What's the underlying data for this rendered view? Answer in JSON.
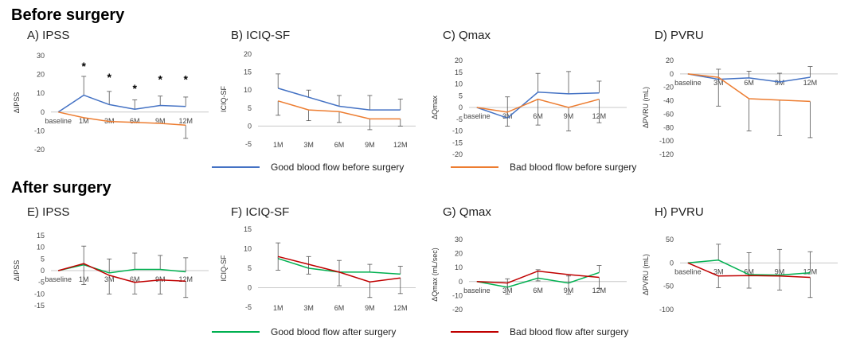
{
  "sections": {
    "before": "Before surgery",
    "after": "After surgery"
  },
  "legends": {
    "before": [
      {
        "label": "Good blood flow before surgery",
        "color": "#4472c4"
      },
      {
        "label": "Bad blood flow before surgery",
        "color": "#ed7d31"
      }
    ],
    "after": [
      {
        "label": "Good blood flow after surgery",
        "color": "#00b050"
      },
      {
        "label": "Bad blood flow after surgery",
        "color": "#c00000"
      }
    ]
  },
  "chart_data": [
    {
      "id": "A",
      "panel_title": "A) IPSS",
      "type": "line",
      "ylabel": "ΔIPSS",
      "ylim": [
        -20,
        30
      ],
      "yticks": [
        -20,
        -10,
        0,
        10,
        20,
        30
      ],
      "categories": [
        "baseline",
        "1M",
        "3M",
        "6M",
        "9M",
        "12M"
      ],
      "cat_offset": 0.1,
      "baseline_at_zero": true,
      "series": [
        {
          "color": "#4472c4",
          "values": [
            0,
            9,
            4,
            1.5,
            3.5,
            3
          ],
          "err": [
            0,
            10,
            7,
            5,
            5,
            5
          ]
        },
        {
          "color": "#ed7d31",
          "values": [
            0,
            -3,
            -5,
            -5.5,
            -6,
            -7
          ],
          "err": [
            0,
            0,
            0,
            0,
            0,
            7
          ]
        }
      ],
      "markers": [
        {
          "x": 1,
          "y": 25,
          "text": "*"
        },
        {
          "x": 2,
          "y": 19,
          "text": "*"
        },
        {
          "x": 3,
          "y": 13,
          "text": "*"
        },
        {
          "x": 4,
          "y": 18,
          "text": "*"
        },
        {
          "x": 5,
          "y": 18,
          "text": "*"
        }
      ]
    },
    {
      "id": "B",
      "panel_title": "B) ICIQ-SF",
      "type": "line",
      "ylabel": "ICIQ-SF",
      "ylim": [
        -5,
        20
      ],
      "yticks": [
        -5,
        0,
        5,
        10,
        15,
        20
      ],
      "categories": [
        "1M",
        "3M",
        "6M",
        "9M",
        "12M"
      ],
      "cat_offset": 0.5,
      "baseline_at_zero": false,
      "series": [
        {
          "color": "#4472c4",
          "values": [
            10.5,
            8,
            5.5,
            4.5,
            4.5
          ],
          "err": [
            4,
            2,
            3,
            4,
            3
          ]
        },
        {
          "color": "#ed7d31",
          "values": [
            7,
            4.5,
            4,
            2,
            2
          ],
          "err": [
            4,
            3,
            3,
            3,
            2
          ]
        }
      ],
      "markers": []
    },
    {
      "id": "C",
      "panel_title": "C) Qmax",
      "type": "line",
      "ylabel": "ΔQmax",
      "ylim": [
        -20,
        20
      ],
      "yticks": [
        -20,
        -15,
        -10,
        -5,
        0,
        5,
        10,
        15,
        20
      ],
      "categories": [
        "baseline",
        "3M",
        "6M",
        "9M",
        "12M"
      ],
      "cat_offset": 0.1,
      "baseline_at_zero": true,
      "series": [
        {
          "color": "#4472c4",
          "values": [
            0,
            -4.5,
            6.5,
            5.8,
            6.2
          ],
          "err": [
            0,
            9,
            8,
            9.5,
            5
          ]
        },
        {
          "color": "#ed7d31",
          "values": [
            0,
            -2,
            3.5,
            0,
            3.5
          ],
          "err": [
            0,
            6,
            11,
            10,
            10
          ]
        }
      ],
      "markers": []
    },
    {
      "id": "D",
      "panel_title": "D) PVRU",
      "type": "line",
      "ylabel": "ΔPVRU (mL)",
      "ylim": [
        -120,
        20
      ],
      "yticks": [
        -120,
        -100,
        -80,
        -60,
        -40,
        -20,
        0,
        20
      ],
      "categories": [
        "baseline",
        "3M",
        "6M",
        "9M",
        "12M"
      ],
      "cat_offset": 0.1,
      "baseline_at_zero": true,
      "series": [
        {
          "color": "#4472c4",
          "values": [
            0,
            -8,
            -6,
            -12,
            -5
          ],
          "err": [
            0,
            15,
            10,
            13,
            16
          ]
        },
        {
          "color": "#ed7d31",
          "values": [
            0,
            -5,
            -37,
            -39,
            -41
          ],
          "err": [
            0,
            43,
            48,
            53,
            54
          ]
        }
      ],
      "markers": []
    },
    {
      "id": "E",
      "panel_title": "E) IPSS",
      "type": "line",
      "ylabel": "ΔIPSS",
      "ylim": [
        -15,
        15
      ],
      "yticks": [
        -15,
        -10,
        -5,
        0,
        5,
        10,
        15
      ],
      "categories": [
        "baseline",
        "1M",
        "3M",
        "6M",
        "9M",
        "12M"
      ],
      "cat_offset": 0.1,
      "baseline_at_zero": true,
      "series": [
        {
          "color": "#00b050",
          "values": [
            0,
            2.5,
            -1,
            0.5,
            0.5,
            -0.5
          ],
          "err": [
            0,
            8,
            6,
            7,
            6,
            6
          ]
        },
        {
          "color": "#c00000",
          "values": [
            0,
            3,
            -2,
            -5,
            -4,
            -4.5
          ],
          "err": [
            0,
            9,
            8,
            5,
            6,
            7
          ]
        }
      ],
      "markers": []
    },
    {
      "id": "F",
      "panel_title": "F) ICIQ-SF",
      "type": "line",
      "ylabel": "ICIQ-SF",
      "ylim": [
        -5,
        15
      ],
      "yticks": [
        -5,
        0,
        5,
        10,
        15
      ],
      "categories": [
        "1M",
        "3M",
        "6M",
        "9M",
        "12M"
      ],
      "cat_offset": 0.5,
      "baseline_at_zero": false,
      "series": [
        {
          "color": "#00b050",
          "values": [
            7.5,
            5,
            4,
            4,
            3.5
          ],
          "err": [
            4,
            3,
            3,
            2,
            2
          ]
        },
        {
          "color": "#c00000",
          "values": [
            8,
            6,
            4,
            1.5,
            2.5
          ],
          "err": [
            3.5,
            2.5,
            3.5,
            4,
            4
          ]
        }
      ],
      "markers": []
    },
    {
      "id": "G",
      "panel_title": "G) Qmax",
      "type": "line",
      "ylabel": "ΔQmax (mL/sec)",
      "ylim": [
        -20,
        30
      ],
      "yticks": [
        -20,
        -10,
        0,
        10,
        20,
        30
      ],
      "categories": [
        "baseline",
        "3M",
        "6M",
        "9M",
        "12M"
      ],
      "cat_offset": 0.1,
      "baseline_at_zero": true,
      "series": [
        {
          "color": "#00b050",
          "values": [
            0,
            -4,
            2.5,
            -1,
            6.5
          ],
          "err": [
            0,
            6,
            6,
            5,
            5
          ]
        },
        {
          "color": "#c00000",
          "values": [
            0,
            -1,
            7.5,
            5,
            3
          ],
          "err": [
            0,
            8,
            7,
            14,
            8
          ]
        }
      ],
      "markers": []
    },
    {
      "id": "H",
      "panel_title": "H) PVRU",
      "type": "line",
      "ylabel": "ΔPVRU (mL)",
      "ylim": [
        -100,
        50
      ],
      "yticks": [
        -100,
        -50,
        0,
        50
      ],
      "categories": [
        "baseline",
        "3M",
        "6M",
        "9M",
        "12M"
      ],
      "cat_offset": 0.1,
      "baseline_at_zero": true,
      "series": [
        {
          "color": "#00b050",
          "values": [
            0,
            6,
            -25,
            -26,
            -21
          ],
          "err": [
            0,
            34,
            47,
            55,
            45
          ]
        },
        {
          "color": "#c00000",
          "values": [
            0,
            -28,
            -27,
            -28,
            -31
          ],
          "err": [
            0,
            25,
            27,
            30,
            43
          ]
        }
      ],
      "markers": []
    }
  ]
}
